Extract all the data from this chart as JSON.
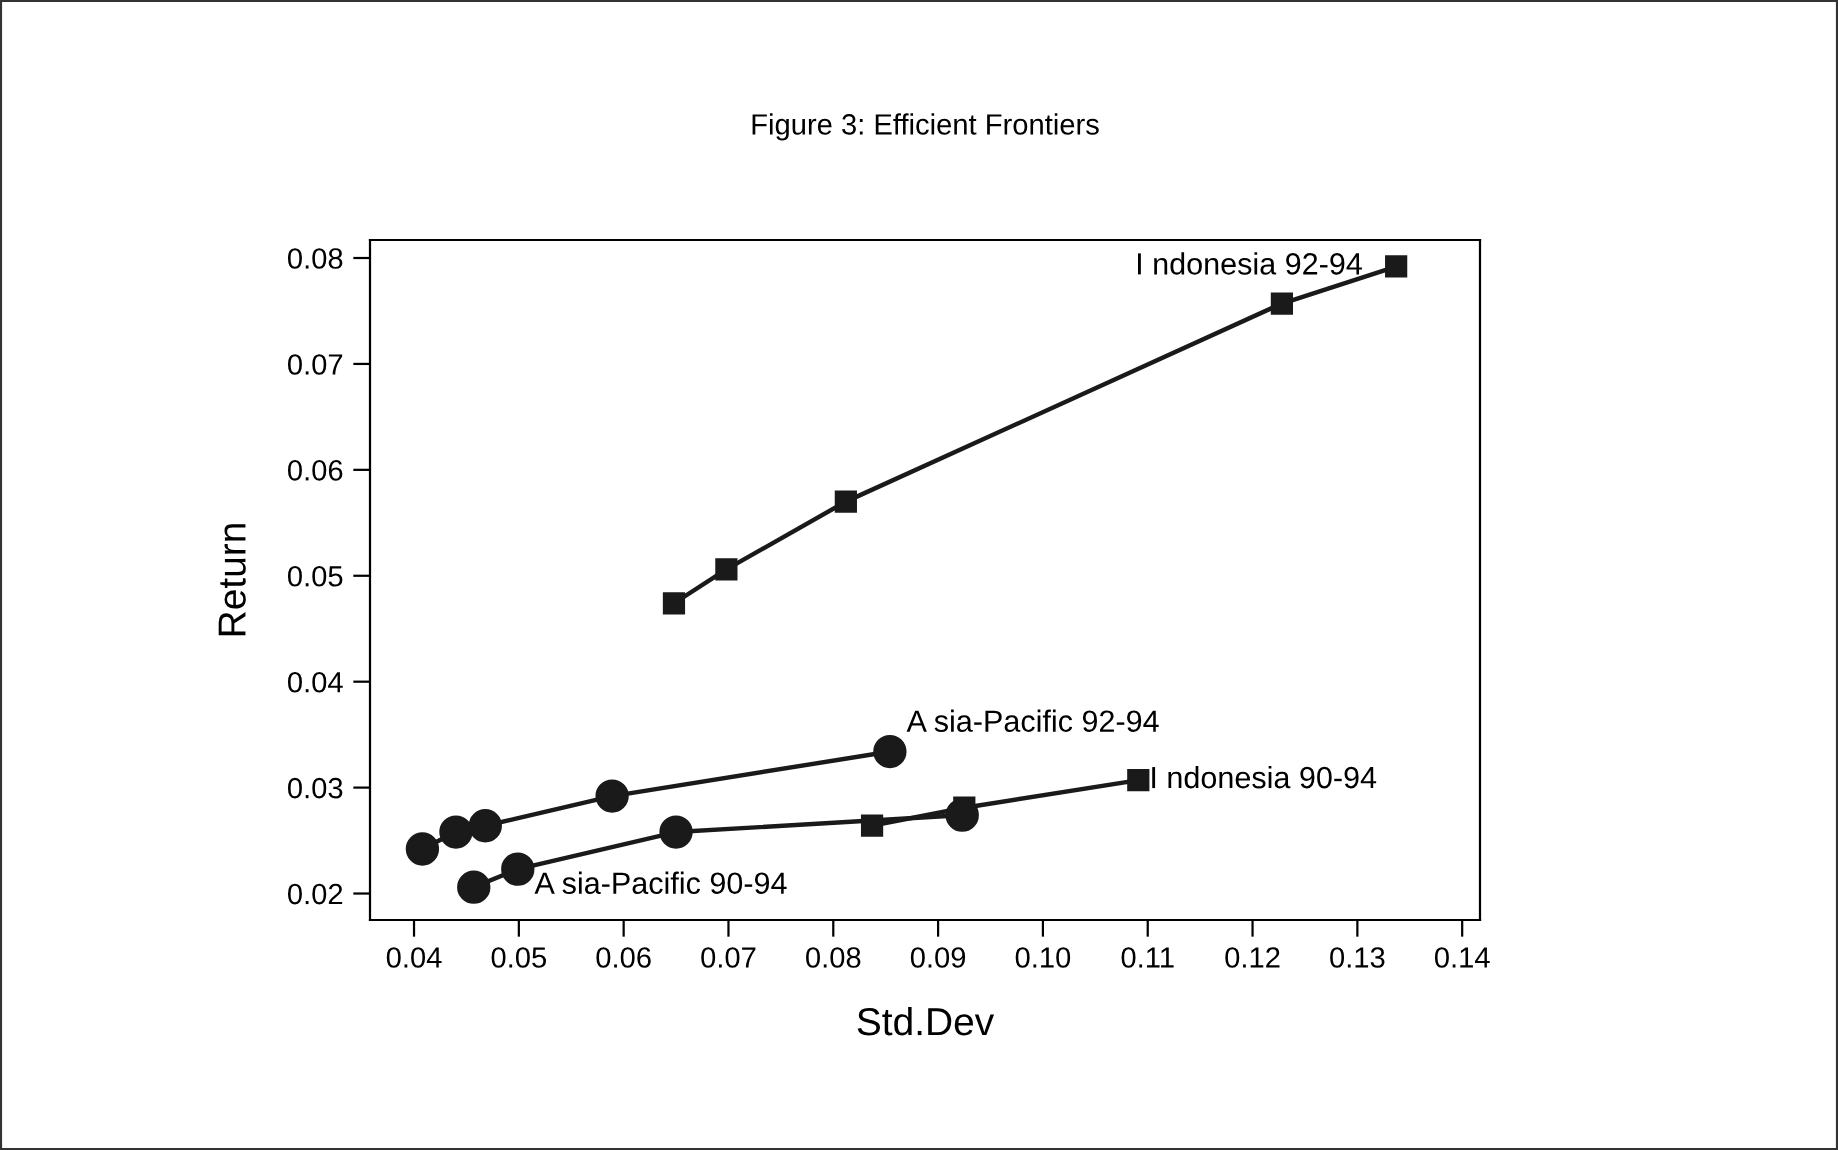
{
  "chart_data": {
    "type": "line",
    "title": "Figure 3: Efficient Frontiers",
    "xlabel": "Std.Dev",
    "ylabel": "Return",
    "series": [
      {
        "x": [
          0.0648,
          0.0698,
          0.0812,
          0.1228,
          0.1337
        ],
        "values": [
          0.0474,
          0.0506,
          0.057,
          0.0757,
          0.0792
        ],
        "color": "#1a1a1a",
        "marker": "square"
      },
      {
        "x": [
          0.0408,
          0.044,
          0.0468,
          0.0589,
          0.0854
        ],
        "values": [
          0.0242,
          0.0258,
          0.0264,
          0.0292,
          0.0334
        ],
        "color": "#1a1a1a",
        "marker": "circle"
      },
      {
        "x": [
          0.0457,
          0.0499,
          0.065,
          0.0923
        ],
        "values": [
          0.0206,
          0.0223,
          0.0258,
          0.0274
        ],
        "color": "#1a1a1a",
        "marker": "circle"
      },
      {
        "x": [
          0.0837,
          0.0925,
          0.1091
        ],
        "values": [
          0.0264,
          0.0281,
          0.0307
        ],
        "color": "#1a1a1a",
        "marker": "square"
      }
    ],
    "annotations": [
      {
        "text": "I ndonesia 92-94",
        "x": 0.1337,
        "y": 0.0792
      },
      {
        "text": "A sia-Pacific 92-94",
        "x": 0.0854,
        "y": 0.0334
      },
      {
        "text": "A sia-Pacific 90-94",
        "x": 0.0499,
        "y": 0.0223
      },
      {
        "text": "I ndonesia 90-94",
        "x": 0.1091,
        "y": 0.0307
      }
    ],
    "xlim": [
      0.0358,
      0.1417
    ],
    "ylim": [
      0.0175,
      0.0817
    ],
    "xticks": [
      0.04,
      0.05,
      0.06,
      0.07,
      0.08,
      0.09,
      {
        "value": 0.1,
        "label": "0.10"
      },
      0.11,
      0.12,
      0.13,
      0.14
    ],
    "yticks": [
      0.02,
      0.03,
      0.04,
      0.05,
      0.06,
      0.07,
      0.08
    ],
    "grid": false,
    "legend": false,
    "line_style": "solid"
  }
}
